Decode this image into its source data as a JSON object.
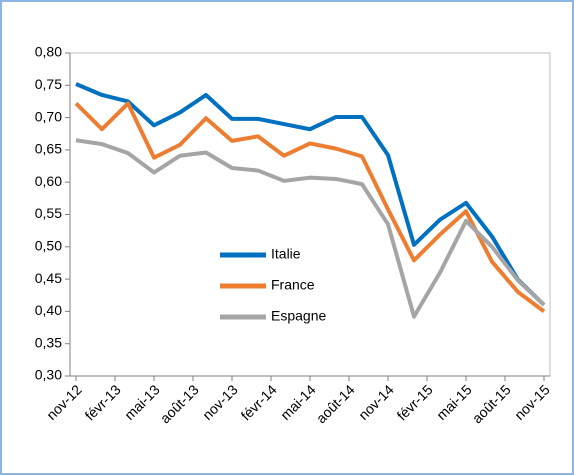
{
  "chart_data": {
    "type": "line",
    "x": [
      "2012-11",
      "2013-01",
      "2013-03",
      "2013-05",
      "2013-07",
      "2013-09",
      "2013-11",
      "2014-01",
      "2014-03",
      "2014-05",
      "2014-07",
      "2014-09",
      "2014-11",
      "2015-01",
      "2015-03",
      "2015-05",
      "2015-07",
      "2015-09",
      "2015-11"
    ],
    "series": [
      {
        "name": "Italie",
        "color": "#0070c0",
        "values": [
          0.752,
          0.735,
          0.725,
          0.688,
          0.708,
          0.735,
          0.698,
          0.698,
          0.69,
          0.682,
          0.701,
          0.701,
          0.642,
          0.503,
          0.542,
          0.568,
          0.516,
          0.449,
          0.41
        ]
      },
      {
        "name": "France",
        "color": "#ed7d31",
        "values": [
          0.722,
          0.682,
          0.722,
          0.638,
          0.658,
          0.699,
          0.664,
          0.671,
          0.641,
          0.66,
          0.652,
          0.64,
          0.558,
          0.479,
          0.519,
          0.555,
          0.477,
          0.43,
          0.4
        ]
      },
      {
        "name": "Espagne",
        "color": "#a5a5a5",
        "values": [
          0.665,
          0.659,
          0.645,
          0.615,
          0.641,
          0.646,
          0.622,
          0.618,
          0.602,
          0.607,
          0.605,
          0.597,
          0.535,
          0.392,
          0.46,
          0.54,
          0.5,
          0.448,
          0.41
        ]
      }
    ],
    "xlim": [
      "2012-11",
      "2015-11"
    ],
    "xticks": [
      {
        "value": "2012-11",
        "label": "nov-12"
      },
      {
        "value": "2013-02",
        "label": "févr-13"
      },
      {
        "value": "2013-05",
        "label": "mai-13"
      },
      {
        "value": "2013-08",
        "label": "août-13"
      },
      {
        "value": "2013-11",
        "label": "nov-13"
      },
      {
        "value": "2014-02",
        "label": "févr-14"
      },
      {
        "value": "2014-05",
        "label": "mai-14"
      },
      {
        "value": "2014-08",
        "label": "août-14"
      },
      {
        "value": "2014-11",
        "label": "nov-14"
      },
      {
        "value": "2015-02",
        "label": "févr-15"
      },
      {
        "value": "2015-05",
        "label": "mai-15"
      },
      {
        "value": "2015-08",
        "label": "août-15"
      },
      {
        "value": "2015-11",
        "label": "nov-15"
      }
    ],
    "ylim": [
      0.3,
      0.8
    ],
    "yticks": [
      {
        "value": 0.3,
        "label": "0,30"
      },
      {
        "value": 0.35,
        "label": "0,35"
      },
      {
        "value": 0.4,
        "label": "0,40"
      },
      {
        "value": 0.45,
        "label": "0,45"
      },
      {
        "value": 0.5,
        "label": "0,50"
      },
      {
        "value": 0.55,
        "label": "0,55"
      },
      {
        "value": 0.6,
        "label": "0,60"
      },
      {
        "value": 0.65,
        "label": "0,65"
      },
      {
        "value": 0.7,
        "label": "0,70"
      },
      {
        "value": 0.75,
        "label": "0,75"
      },
      {
        "value": 0.8,
        "label": "0,80"
      }
    ],
    "grid": false
  }
}
